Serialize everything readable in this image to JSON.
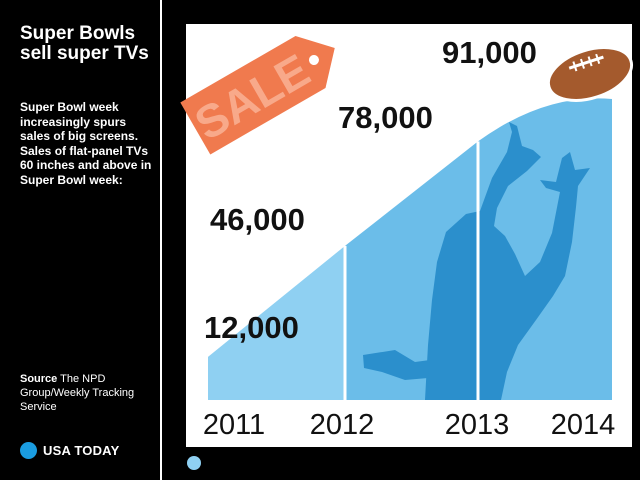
{
  "sidebar": {
    "title": "Super Bowls sell super TVs",
    "description": "Super Bowl week increasingly spurs sales of big screens. Sales of flat-panel TVs 60 inches and above in Super Bowl week:",
    "source_label": "Source",
    "source_text": "The NPD Group/Weekly Tracking Service",
    "logo": "USA TODAY"
  },
  "tag_text": "SALE",
  "colors": {
    "area": "#6bbde9",
    "area_light": "#8fd0f2",
    "silhouette": "#2b8fcc",
    "tag": "#f07a4e",
    "football": "#a45a2d",
    "logo_dot": "#1a9ce0"
  },
  "chart_data": {
    "type": "area",
    "categories": [
      "2011",
      "2012",
      "2013",
      "2014"
    ],
    "values": [
      12000,
      46000,
      78000,
      91000
    ],
    "value_labels": [
      "12,000",
      "46,000",
      "78,000",
      "91,000"
    ],
    "title": "Super Bowls sell super TVs",
    "xlabel": "",
    "ylabel": "",
    "grid": false
  }
}
